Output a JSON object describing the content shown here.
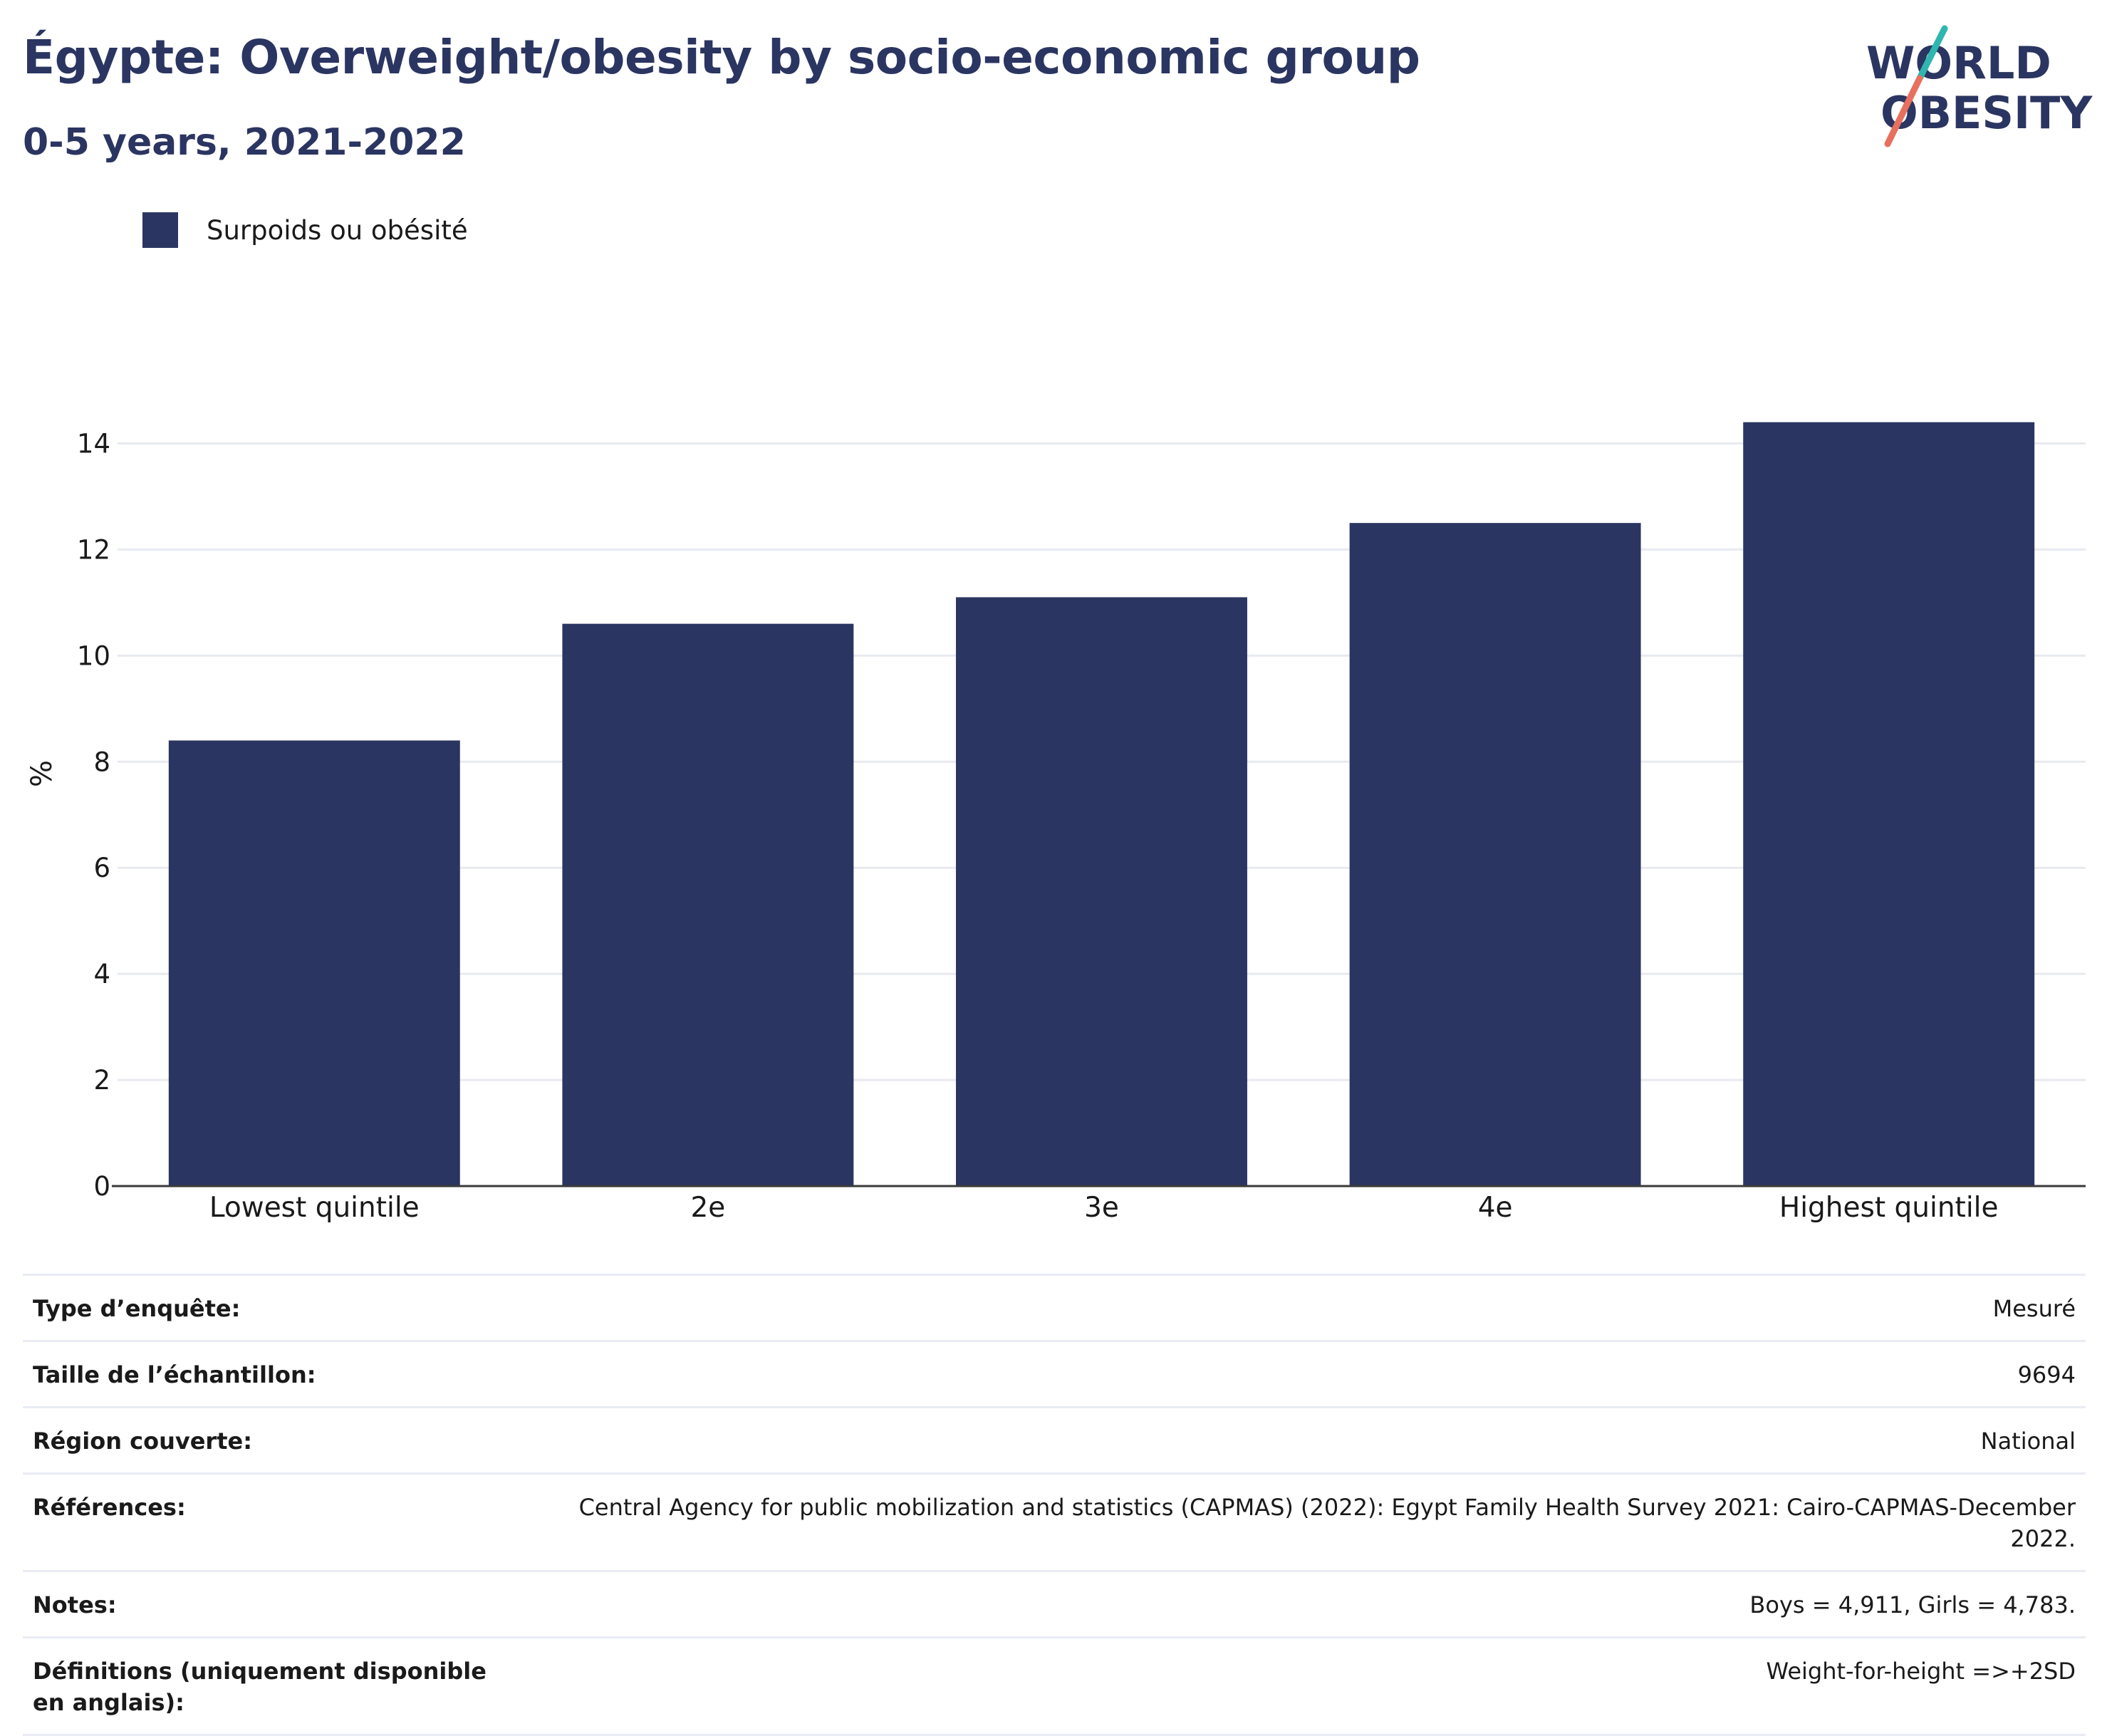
{
  "header": {
    "title": "Égypte: Overweight/obesity by socio-economic group",
    "subtitle": "0-5 years, 2021-2022"
  },
  "logo": {
    "line1": "WORLD",
    "line2": "OBESITY",
    "icon": "world-obesity-logo"
  },
  "legend": {
    "label": "Surpoids ou obésité",
    "color": "#2b3561"
  },
  "chart_data": {
    "type": "bar",
    "categories": [
      "Lowest quintile",
      "2e",
      "3e",
      "4e",
      "Highest quintile"
    ],
    "series": [
      {
        "name": "Surpoids ou obésité",
        "values": [
          8.4,
          10.6,
          11.1,
          12.5,
          14.4
        ],
        "color": "#2b3561"
      }
    ],
    "ylabel": "%",
    "xlabel": "",
    "ylim": [
      0,
      15
    ],
    "yticks": [
      0,
      2,
      4,
      6,
      8,
      10,
      12,
      14
    ],
    "grid": true,
    "legend_position": "top-left"
  },
  "info_table": [
    {
      "key": "Type d’enquête:",
      "value": "Mesuré"
    },
    {
      "key": "Taille de l’échantillon:",
      "value": "9694"
    },
    {
      "key": "Région couverte:",
      "value": "National"
    },
    {
      "key": "Références:",
      "value": "Central Agency for public mobilization and statistics (CAPMAS) (2022): Egypt Family Health Survey 2021: Cairo-CAPMAS-December 2022."
    },
    {
      "key": "Notes:",
      "value": "Boys = 4,911, Girls = 4,783."
    },
    {
      "key": "Définitions (uniquement disponible en anglais):",
      "value": "Weight-for-height =>+2SD"
    }
  ]
}
